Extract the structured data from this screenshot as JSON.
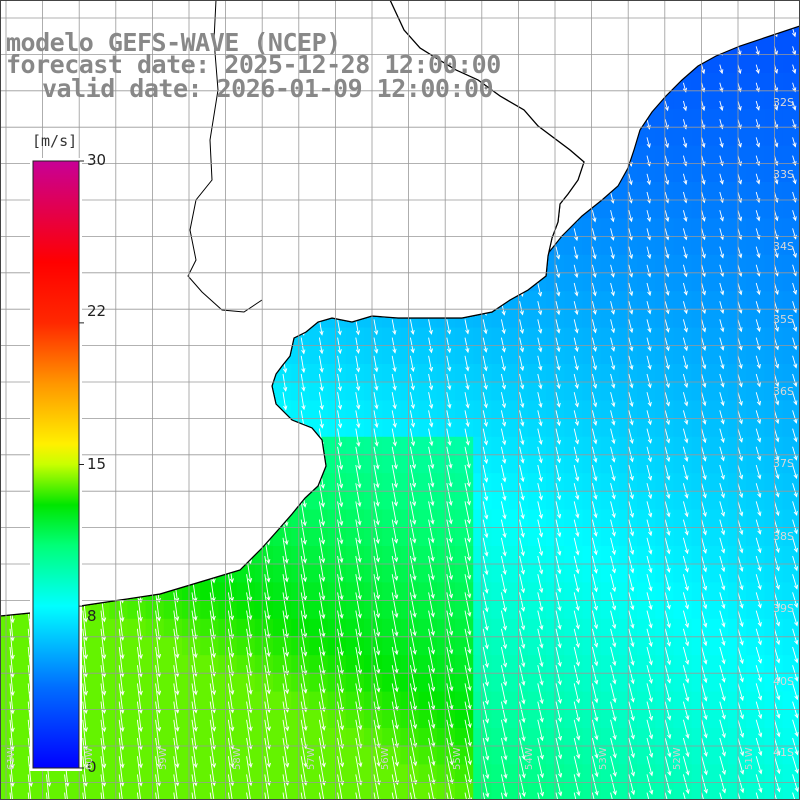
{
  "header": {
    "line1": "modelo GEFS-WAVE (NCEP)",
    "line2": "forecast date: 2025-12-28 12:00:00",
    "line3": "valid date: 2026-01-09 12:00:00"
  },
  "colorbar": {
    "unit": "[m/s]",
    "min": 0,
    "max": 30,
    "ticks": [
      {
        "value": 30,
        "label": "30"
      },
      {
        "value": 22,
        "label": "22"
      },
      {
        "value": 15,
        "label": "15"
      },
      {
        "value": 8,
        "label": "8"
      },
      {
        "value": 0,
        "label": "0"
      }
    ]
  },
  "latitude_labels": [
    "32S",
    "33S",
    "34S",
    "35S",
    "36S",
    "37S",
    "38S",
    "39S",
    "40S",
    "41S"
  ],
  "longitude_labels": [
    "61W",
    "60W",
    "59W",
    "58W",
    "57W",
    "56W",
    "55W",
    "54W",
    "53W",
    "52W",
    "51W"
  ],
  "colors": {
    "land": "#ffffff",
    "coastline": "#000000",
    "grid": "#888888",
    "arrow": "#ffffff",
    "label_gray": "#888888"
  }
}
